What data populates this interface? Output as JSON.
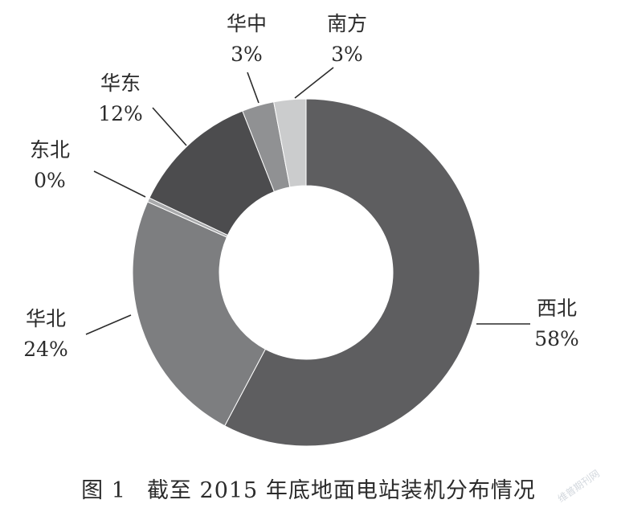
{
  "chart_data": {
    "type": "pie",
    "title": "",
    "slices": [
      {
        "label": "西北",
        "value": 58,
        "value_label": "58%",
        "color": "#5e5e60"
      },
      {
        "label": "华北",
        "value": 24,
        "value_label": "24%",
        "color": "#7d7e80"
      },
      {
        "label": "东北",
        "value": 0.4,
        "value_label": "0%",
        "color": "#a9aaac"
      },
      {
        "label": "华东",
        "value": 12,
        "value_label": "12%",
        "color": "#4c4c4e"
      },
      {
        "label": "华中",
        "value": 3,
        "value_label": "3%",
        "color": "#909193"
      },
      {
        "label": "南方",
        "value": 3,
        "value_label": "3%",
        "color": "#cbcccd"
      }
    ],
    "hole": true
  },
  "caption": {
    "figure_number": "图 1",
    "text": "截至 2015 年底地面电站装机分布情况"
  },
  "watermark": "维普期刊网"
}
